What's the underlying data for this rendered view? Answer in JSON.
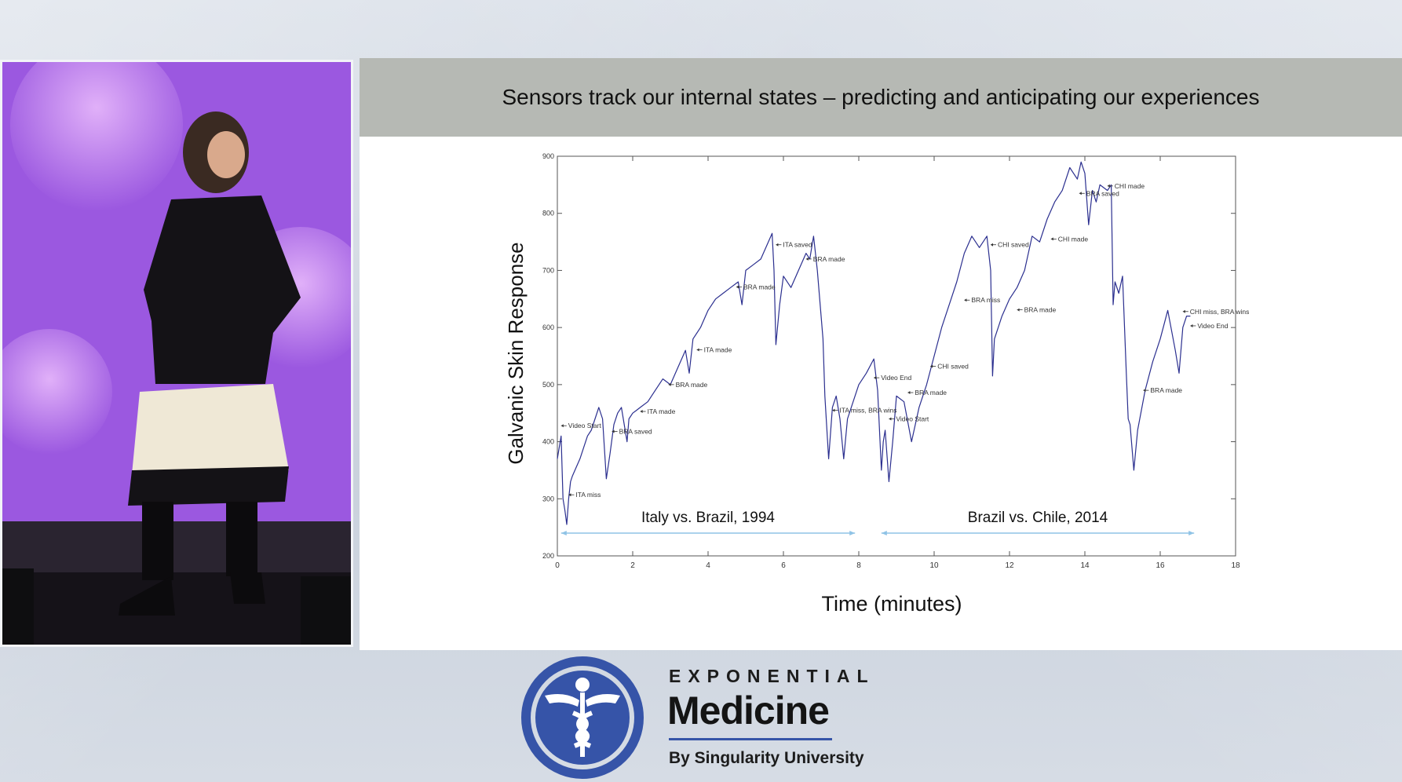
{
  "slide": {
    "title": "Sensors track our internal states – predicting and anticipating our experiences"
  },
  "logo": {
    "line1": "EXPONENTIAL",
    "line2": "Medicine",
    "line3": "By Singularity University",
    "color": "#3654a8"
  },
  "chart_data": {
    "type": "line",
    "title": "",
    "xlabel": "Time (minutes)",
    "ylabel": "Galvanic Skin Response",
    "xlim": [
      0,
      18
    ],
    "ylim": [
      200,
      900
    ],
    "xticks": [
      0,
      2,
      4,
      6,
      8,
      10,
      12,
      14,
      16,
      18
    ],
    "yticks": [
      200,
      300,
      400,
      500,
      600,
      700,
      800,
      900
    ],
    "grid": false,
    "line_color": "#2b2f8f",
    "series": [
      {
        "x": [
          0,
          0.1,
          0.15,
          0.2,
          0.25,
          0.3,
          0.35,
          0.4,
          0.5,
          0.6,
          0.7,
          0.8,
          0.9,
          1.0,
          1.1,
          1.2,
          1.3,
          1.4,
          1.5,
          1.6,
          1.7,
          1.8,
          1.85,
          1.9,
          2.0,
          2.1,
          2.2,
          2.4,
          2.6,
          2.8,
          3.0,
          3.2,
          3.4,
          3.5,
          3.6,
          3.8,
          4.0,
          4.2,
          4.4,
          4.6,
          4.8,
          4.9,
          5.0,
          5.2,
          5.4,
          5.6,
          5.7,
          5.75,
          5.8,
          5.9,
          6.0,
          6.2,
          6.4,
          6.6,
          6.7,
          6.8,
          6.9,
          7.0,
          7.05,
          7.1,
          7.2,
          7.3,
          7.4,
          7.5,
          7.6,
          7.7,
          7.8,
          8.0,
          8.2,
          8.4,
          8.5,
          8.6,
          8.65,
          8.7,
          8.8,
          8.9,
          9.0,
          9.2,
          9.4,
          9.6,
          9.8,
          10.0,
          10.2,
          10.4,
          10.6,
          10.8,
          11.0,
          11.2,
          11.4,
          11.5,
          11.55,
          11.6,
          11.8,
          12.0,
          12.2,
          12.4,
          12.6,
          12.8,
          13.0,
          13.2,
          13.4,
          13.6,
          13.8,
          13.9,
          14.0,
          14.1,
          14.2,
          14.3,
          14.4,
          14.6,
          14.7,
          14.75,
          14.8,
          14.9,
          15.0,
          15.1,
          15.15,
          15.2,
          15.3,
          15.4,
          15.6,
          15.8,
          16.0,
          16.2,
          16.4,
          16.5,
          16.6,
          16.7,
          16.8
        ],
        "y": [
          370,
          410,
          300,
          280,
          255,
          300,
          330,
          340,
          355,
          370,
          390,
          410,
          420,
          440,
          460,
          440,
          335,
          380,
          430,
          450,
          460,
          420,
          400,
          440,
          450,
          455,
          460,
          470,
          490,
          510,
          500,
          530,
          560,
          520,
          580,
          600,
          630,
          650,
          660,
          670,
          680,
          640,
          700,
          710,
          720,
          750,
          765,
          700,
          570,
          640,
          690,
          670,
          700,
          730,
          720,
          760,
          700,
          620,
          580,
          480,
          370,
          460,
          480,
          440,
          370,
          440,
          460,
          500,
          520,
          545,
          490,
          350,
          400,
          420,
          330,
          400,
          480,
          470,
          400,
          460,
          500,
          550,
          600,
          640,
          680,
          730,
          760,
          740,
          760,
          700,
          515,
          580,
          620,
          650,
          670,
          700,
          760,
          750,
          790,
          820,
          840,
          880,
          860,
          890,
          870,
          780,
          840,
          820,
          850,
          840,
          850,
          640,
          680,
          660,
          690,
          520,
          440,
          430,
          350,
          420,
          490,
          540,
          580,
          630,
          560,
          520,
          600,
          620,
          620
        ]
      }
    ],
    "annotations": [
      {
        "text": "Video Start",
        "x": 0.1,
        "y": 428
      },
      {
        "text": "ITA miss",
        "x": 0.3,
        "y": 307
      },
      {
        "text": "BRA saved",
        "x": 1.45,
        "y": 418
      },
      {
        "text": "ITA made",
        "x": 2.2,
        "y": 453
      },
      {
        "text": "BRA made",
        "x": 2.95,
        "y": 500
      },
      {
        "text": "ITA made",
        "x": 3.7,
        "y": 561
      },
      {
        "text": "BRA made",
        "x": 4.75,
        "y": 671
      },
      {
        "text": "ITA saved",
        "x": 5.8,
        "y": 745
      },
      {
        "text": "BRA made",
        "x": 6.6,
        "y": 720
      },
      {
        "text": "ITA miss, BRA wins",
        "x": 7.3,
        "y": 455
      },
      {
        "text": "Video End",
        "x": 8.4,
        "y": 512
      },
      {
        "text": "Video Start",
        "x": 8.8,
        "y": 440
      },
      {
        "text": "BRA made",
        "x": 9.3,
        "y": 486
      },
      {
        "text": "CHI saved",
        "x": 9.9,
        "y": 532
      },
      {
        "text": "BRA miss",
        "x": 10.8,
        "y": 648
      },
      {
        "text": "CHI saved",
        "x": 11.5,
        "y": 745
      },
      {
        "text": "BRA made",
        "x": 12.2,
        "y": 631
      },
      {
        "text": "CHI made",
        "x": 13.1,
        "y": 755
      },
      {
        "text": "BRA saved",
        "x": 13.85,
        "y": 835
      },
      {
        "text": "CHI made",
        "x": 14.6,
        "y": 848
      },
      {
        "text": "BRA made",
        "x": 15.55,
        "y": 490
      },
      {
        "text": "CHI miss, BRA wins",
        "x": 16.6,
        "y": 628
      },
      {
        "text": "Video End",
        "x": 16.8,
        "y": 603
      }
    ],
    "ranges": [
      {
        "label": "Italy vs. Brazil, 1994",
        "x_start": 0.1,
        "x_end": 7.9
      },
      {
        "label": "Brazil vs. Chile, 2014",
        "x_start": 8.6,
        "x_end": 16.9
      }
    ]
  }
}
